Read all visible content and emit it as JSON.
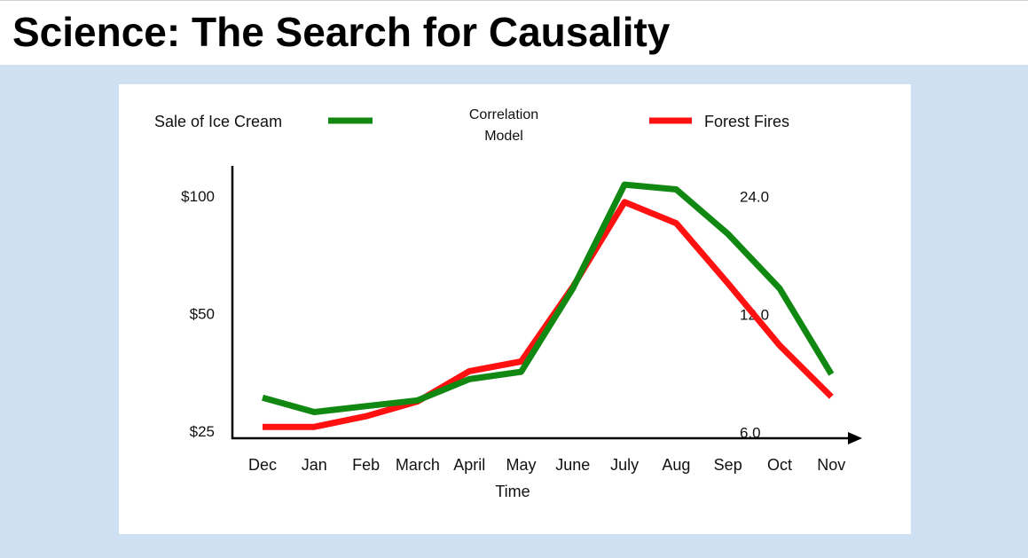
{
  "slide": {
    "title": "Science: The Search for Causality"
  },
  "colors": {
    "header_bg": "#ffffff",
    "content_bg": "#cfe0f2",
    "ice_cream_line": "#118811",
    "forest_fires_line": "#ff1111"
  },
  "chart_data": {
    "type": "line",
    "title": "",
    "xlabel": "Time",
    "ylabel": "",
    "legend": {
      "left_label": "Sale of Ice Cream",
      "center_label_line1": "Correlation",
      "center_label_line2": "Model",
      "right_label": "Forest Fires",
      "placement": "top"
    },
    "categories": [
      "Dec",
      "Jan",
      "Feb",
      "March",
      "April",
      "May",
      "June",
      "July",
      "Aug",
      "Sep",
      "Oct",
      "Nov"
    ],
    "y_left": {
      "ticks": [
        {
          "value": 25,
          "label": "$25"
        },
        {
          "value": 50,
          "label": "$50"
        },
        {
          "value": 100,
          "label": "$100"
        }
      ],
      "scale": "log",
      "range": [
        24,
        122
      ]
    },
    "y_right": {
      "ticks": [
        {
          "value": 6,
          "label": "6.0"
        },
        {
          "value": 12,
          "label": "12.0"
        },
        {
          "value": 24,
          "label": "24.0"
        }
      ],
      "scale": "log",
      "range": [
        5.8,
        29.3
      ]
    },
    "grid": false,
    "series": [
      {
        "name": "Sale of Ice Cream",
        "color": "#118811",
        "axis": "left",
        "x": [
          "Dec",
          "Jan",
          "Feb",
          "March",
          "April",
          "May",
          "June",
          "July",
          "Aug",
          "Sep",
          "Oct",
          "Nov"
        ],
        "values": [
          30.5,
          28,
          29,
          30,
          34,
          35.5,
          58,
          107,
          104,
          80,
          58,
          35
        ]
      },
      {
        "name": "Forest Fires",
        "color": "#ff1111",
        "axis": "right",
        "x": [
          "Dec",
          "Jan",
          "Feb",
          "March",
          "April",
          "May",
          "June",
          "July",
          "Aug",
          "Sep",
          "Oct",
          "Nov"
        ],
        "values": [
          6.2,
          6.2,
          6.6,
          7.2,
          8.6,
          9.1,
          14.1,
          23.2,
          20.5,
          14.4,
          10.0,
          7.4
        ]
      }
    ]
  }
}
